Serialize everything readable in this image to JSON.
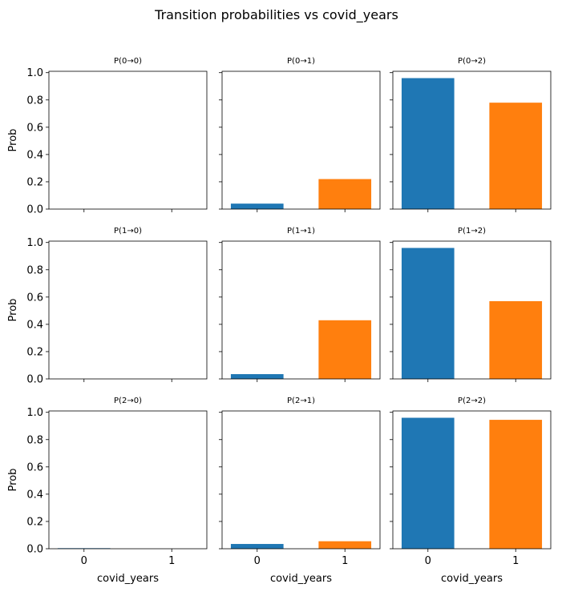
{
  "chart_data": {
    "type": "bar",
    "title": "Transition probabilities vs covid_years",
    "xlabel": "covid_years",
    "ylabel": "Prob",
    "categories": [
      "0",
      "1"
    ],
    "ylim": [
      0,
      1.01
    ],
    "yticks": [
      "0.0",
      "0.2",
      "0.4",
      "0.6",
      "0.8",
      "1.0"
    ],
    "colors": [
      "#1f77b4",
      "#ff7f0e"
    ],
    "grid": false,
    "panels": [
      {
        "title": "P(0→0)",
        "values": [
          0.0,
          0.0
        ]
      },
      {
        "title": "P(0→1)",
        "values": [
          0.04,
          0.22
        ]
      },
      {
        "title": "P(0→2)",
        "values": [
          0.96,
          0.78
        ]
      },
      {
        "title": "P(1→0)",
        "values": [
          0.0,
          0.0
        ]
      },
      {
        "title": "P(1→1)",
        "values": [
          0.035,
          0.43
        ]
      },
      {
        "title": "P(1→2)",
        "values": [
          0.96,
          0.57
        ]
      },
      {
        "title": "P(2→0)",
        "values": [
          0.004,
          0.0
        ]
      },
      {
        "title": "P(2→1)",
        "values": [
          0.035,
          0.055
        ]
      },
      {
        "title": "P(2→2)",
        "values": [
          0.96,
          0.945
        ]
      }
    ]
  }
}
